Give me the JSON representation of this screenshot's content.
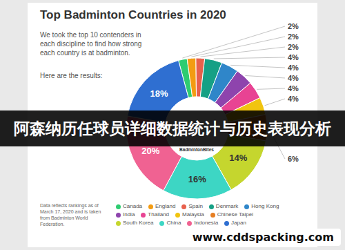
{
  "chart_data": {
    "type": "donut",
    "title": "Top Badminton Countries in 2020",
    "subtitle": "We took the top 10 contenders in each discipline to find how strong each country is at badminton.",
    "intro": "Here are the results:",
    "center_text": "BadmintonBites",
    "note": "Data reflects rankings as of March 17, 2020 and is taken from Badminton World Federation.",
    "overlay_text": "阿森纳历任球员详细数据统计与历史表现分析",
    "watermark": "www.cddspacking.com",
    "categories": [
      "Canada",
      "England",
      "Spain",
      "Denmark",
      "Hong Kong",
      "India",
      "Thailand",
      "Malaysia",
      "Chinese Taipei",
      "South Korea",
      "China",
      "Indonesia",
      "Japan"
    ],
    "values": [
      2,
      2,
      2,
      4,
      4,
      4,
      4,
      4,
      6,
      14,
      16,
      20,
      18
    ],
    "value_labels": [
      "2%",
      "2%",
      "2%",
      "4%",
      "4%",
      "4%",
      "4%",
      "4%",
      "6%",
      "14%",
      "16%",
      "20%",
      "18%"
    ],
    "colors": [
      "#2ecc71",
      "#f39c12",
      "#e8604c",
      "#16a085",
      "#2f86c9",
      "#8e44ad",
      "#e84393",
      "#f1c40f",
      "#e67e22",
      "#c5d62e",
      "#3dd6c4",
      "#f06292",
      "#2f6fd1"
    ],
    "data_labels": true,
    "legend": "bottom"
  }
}
